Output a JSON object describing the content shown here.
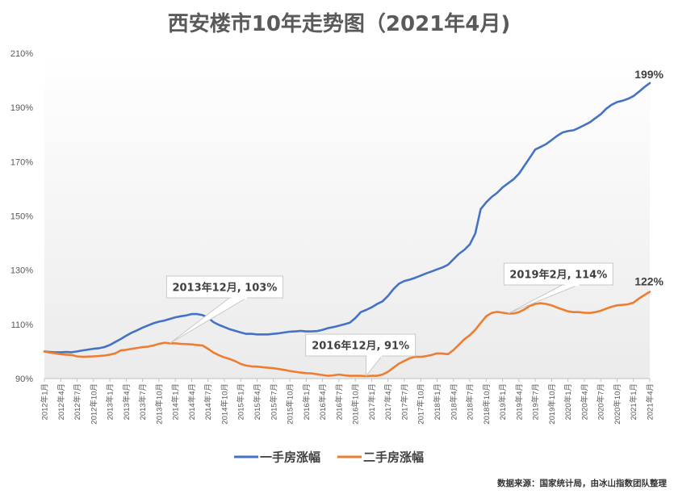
{
  "chart_data": {
    "type": "line",
    "title": "西安楼市10年走势图（2021年4月)",
    "ylim": [
      90,
      210
    ],
    "yticks": [
      "90%",
      "110%",
      "130%",
      "150%",
      "170%",
      "190%",
      "210%"
    ],
    "ytick_values": [
      90,
      110,
      130,
      150,
      170,
      190,
      210
    ],
    "xtick_labels": [
      "2012年1月",
      "2012年4月",
      "2012年7月",
      "2012年10月",
      "2013年1月",
      "2013年4月",
      "2013年7月",
      "2013年10月",
      "2014年1月",
      "2014年4月",
      "2014年7月",
      "2014年10月",
      "2015年1月",
      "2015年4月",
      "2015年7月",
      "2015年10月",
      "2016年1月",
      "2016年4月",
      "2016年7月",
      "2016年10月",
      "2017年1月",
      "2017年4月",
      "2017年7月",
      "2017年10月",
      "2018年1月",
      "2018年4月",
      "2018年7月",
      "2018年10月",
      "2019年1月",
      "2019年4月",
      "2019年7月",
      "2019年10月",
      "2020年1月",
      "2020年4月",
      "2020年7月",
      "2020年10月",
      "2021年1月",
      "2021年4月"
    ],
    "series": [
      {
        "name": "一手房涨幅",
        "color": "#4472C4",
        "values": [
          100.0,
          99.8,
          99.7,
          99.7,
          99.8,
          99.7,
          100.0,
          100.4,
          100.7,
          101.0,
          101.2,
          101.6,
          102.4,
          103.5,
          104.6,
          105.8,
          106.9,
          107.8,
          108.8,
          109.6,
          110.4,
          111.0,
          111.4,
          112.0,
          112.6,
          113.0,
          113.3,
          113.8,
          113.8,
          113.4,
          112.5,
          110.8,
          109.8,
          109.0,
          108.2,
          107.6,
          107.0,
          106.5,
          106.5,
          106.3,
          106.3,
          106.3,
          106.5,
          106.7,
          107.0,
          107.3,
          107.4,
          107.6,
          107.4,
          107.4,
          107.5,
          108.0,
          108.6,
          109.0,
          109.5,
          110.0,
          110.6,
          112.3,
          114.5,
          115.3,
          116.3,
          117.5,
          118.5,
          120.5,
          123.0,
          125.0,
          126.0,
          126.5,
          127.2,
          128.0,
          128.8,
          129.5,
          130.3,
          131.0,
          132.0,
          134.0,
          136.0,
          137.5,
          139.5,
          143.5,
          152.5,
          155.0,
          157.0,
          158.5,
          160.5,
          162.0,
          163.5,
          165.5,
          168.5,
          171.5,
          174.5,
          175.5,
          176.5,
          178.0,
          179.5,
          180.8,
          181.3,
          181.6,
          182.5,
          183.5,
          184.5,
          186.0,
          187.5,
          189.5,
          191.0,
          192.0,
          192.5,
          193.2,
          194.2,
          195.8,
          197.5,
          199.0
        ]
      },
      {
        "name": "二手房涨幅",
        "color": "#ED7D31",
        "values": [
          100.0,
          99.6,
          99.3,
          99.0,
          98.8,
          98.7,
          98.2,
          98.0,
          98.1,
          98.2,
          98.3,
          98.5,
          98.8,
          99.3,
          100.4,
          100.6,
          101.0,
          101.3,
          101.6,
          101.8,
          102.2,
          102.8,
          103.2,
          103.0,
          103.0,
          102.8,
          102.7,
          102.6,
          102.4,
          102.2,
          101.0,
          99.6,
          98.6,
          97.8,
          97.2,
          96.4,
          95.4,
          94.8,
          94.5,
          94.4,
          94.2,
          94.0,
          93.8,
          93.5,
          93.2,
          92.8,
          92.5,
          92.2,
          92.0,
          91.9,
          91.6,
          91.3,
          91.0,
          91.2,
          91.5,
          91.2,
          91.0,
          91.0,
          91.0,
          90.9,
          91.0,
          91.0,
          91.5,
          92.5,
          94.0,
          95.5,
          96.5,
          97.5,
          98.0,
          98.0,
          98.3,
          98.7,
          99.3,
          99.2,
          99.0,
          100.5,
          102.5,
          104.5,
          106.0,
          108.0,
          110.5,
          113.0,
          114.2,
          114.6,
          114.3,
          114.0,
          114.0,
          114.5,
          115.5,
          116.8,
          117.5,
          117.8,
          117.5,
          117.0,
          116.2,
          115.5,
          114.8,
          114.5,
          114.5,
          114.3,
          114.2,
          114.5,
          115.0,
          115.8,
          116.5,
          117.0,
          117.2,
          117.4,
          118.0,
          119.5,
          120.8,
          122.0
        ]
      }
    ],
    "annotations": [
      {
        "text": "2013年12月, 103%",
        "index": 23,
        "value": 103
      },
      {
        "text": "2016年12月, 91%",
        "index": 59,
        "value": 91
      },
      {
        "text": "2019年2月, 114%",
        "index": 85,
        "value": 114
      }
    ],
    "end_labels": [
      "199%",
      "122%"
    ],
    "grid": false,
    "legend_position": "bottom"
  },
  "source_note": "数据来源：国家统计局，由冰山指数团队整理"
}
